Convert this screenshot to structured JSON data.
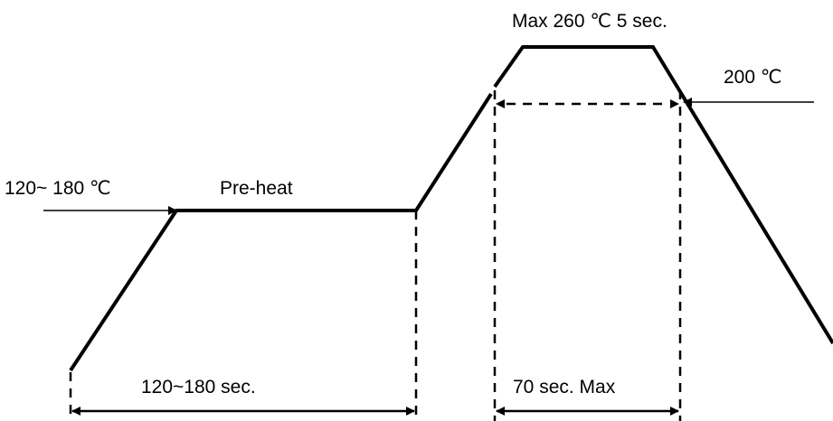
{
  "labels": {
    "peak": "Max 260 ℃ 5 sec.",
    "reflow_temp": "200 ℃",
    "preheat_temp": "120~ 180 ℃",
    "preheat": "Pre-heat",
    "preheat_time": "120~180 sec.",
    "reflow_time": "70 sec. Max"
  }
}
